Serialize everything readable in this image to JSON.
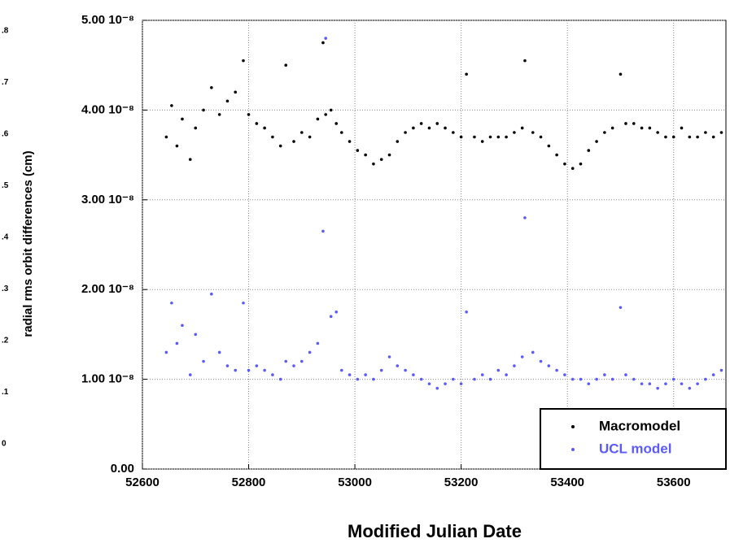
{
  "chart_data": {
    "type": "scatter",
    "y_axis_label": "radial rms orbit differences (cm)",
    "x_axis_label": "Modified Julian Date",
    "left_axis_fragment_labels": [
      ".8",
      ".7",
      ".6",
      ".5",
      ".4",
      ".3",
      ".2",
      ".1",
      "0"
    ],
    "xlim": [
      52600,
      53700
    ],
    "xticks": [
      52600,
      52800,
      53000,
      53200,
      53400,
      53600
    ],
    "ylim": [
      0,
      5e-08
    ],
    "yticks": [
      {
        "value": 0,
        "label": "0.00"
      },
      {
        "value": 1e-08,
        "label": "1.00 10⁻⁸"
      },
      {
        "value": 2e-08,
        "label": "2.00 10⁻⁸"
      },
      {
        "value": 3e-08,
        "label": "3.00 10⁻⁸"
      },
      {
        "value": 4e-08,
        "label": "4.00 10⁻⁸"
      },
      {
        "value": 5e-08,
        "label": "5.00 10⁻⁸"
      }
    ],
    "grid": true,
    "legend": "lower right",
    "series": [
      {
        "name": "Macromodel",
        "color": "#000000",
        "x": [
          52645,
          52655,
          52665,
          52675,
          52690,
          52700,
          52715,
          52730,
          52745,
          52760,
          52775,
          52790,
          52800,
          52815,
          52830,
          52845,
          52860,
          52870,
          52885,
          52900,
          52915,
          52930,
          52940,
          52945,
          52955,
          52965,
          52975,
          52990,
          53005,
          53020,
          53035,
          53050,
          53065,
          53080,
          53095,
          53110,
          53125,
          53140,
          53155,
          53170,
          53185,
          53200,
          53210,
          53225,
          53240,
          53255,
          53270,
          53285,
          53300,
          53315,
          53320,
          53335,
          53350,
          53365,
          53380,
          53395,
          53410,
          53425,
          53440,
          53455,
          53470,
          53485,
          53500,
          53510,
          53525,
          53540,
          53555,
          53570,
          53585,
          53600,
          53615,
          53630,
          53645,
          53660,
          53675,
          53690
        ],
        "values": [
          3.7e-08,
          4.05e-08,
          3.6e-08,
          3.9e-08,
          3.45e-08,
          3.8e-08,
          4e-08,
          4.25e-08,
          3.95e-08,
          4.1e-08,
          4.2e-08,
          4.55e-08,
          3.95e-08,
          3.85e-08,
          3.8e-08,
          3.7e-08,
          3.6e-08,
          4.5e-08,
          3.65e-08,
          3.75e-08,
          3.7e-08,
          3.9e-08,
          4.75e-08,
          3.95e-08,
          4e-08,
          3.85e-08,
          3.75e-08,
          3.65e-08,
          3.55e-08,
          3.5e-08,
          3.4e-08,
          3.45e-08,
          3.5e-08,
          3.65e-08,
          3.75e-08,
          3.8e-08,
          3.85e-08,
          3.8e-08,
          3.85e-08,
          3.8e-08,
          3.75e-08,
          3.7e-08,
          4.4e-08,
          3.7e-08,
          3.65e-08,
          3.7e-08,
          3.7e-08,
          3.7e-08,
          3.75e-08,
          3.8e-08,
          4.55e-08,
          3.75e-08,
          3.7e-08,
          3.6e-08,
          3.5e-08,
          3.4e-08,
          3.35e-08,
          3.4e-08,
          3.55e-08,
          3.65e-08,
          3.75e-08,
          3.8e-08,
          4.4e-08,
          3.85e-08,
          3.85e-08,
          3.8e-08,
          3.8e-08,
          3.75e-08,
          3.7e-08,
          3.7e-08,
          3.8e-08,
          3.7e-08,
          3.7e-08,
          3.75e-08,
          3.7e-08,
          3.75e-08
        ]
      },
      {
        "name": "UCL model",
        "color": "#5a5aff",
        "x": [
          52645,
          52655,
          52665,
          52675,
          52690,
          52700,
          52715,
          52730,
          52745,
          52760,
          52775,
          52790,
          52800,
          52815,
          52830,
          52845,
          52860,
          52870,
          52885,
          52900,
          52915,
          52930,
          52940,
          52945,
          52955,
          52965,
          52975,
          52990,
          53005,
          53020,
          53035,
          53050,
          53065,
          53080,
          53095,
          53110,
          53125,
          53140,
          53155,
          53170,
          53185,
          53200,
          53210,
          53225,
          53240,
          53255,
          53270,
          53285,
          53300,
          53315,
          53320,
          53335,
          53350,
          53365,
          53380,
          53395,
          53410,
          53425,
          53440,
          53455,
          53470,
          53485,
          53500,
          53510,
          53525,
          53540,
          53555,
          53570,
          53585,
          53600,
          53615,
          53630,
          53645,
          53660,
          53675,
          53690
        ],
        "values": [
          1.3e-08,
          1.85e-08,
          1.4e-08,
          1.6e-08,
          1.05e-08,
          1.5e-08,
          1.2e-08,
          1.95e-08,
          1.3e-08,
          1.15e-08,
          1.1e-08,
          1.85e-08,
          1.1e-08,
          1.15e-08,
          1.1e-08,
          1.05e-08,
          1e-08,
          1.2e-08,
          1.15e-08,
          1.2e-08,
          1.3e-08,
          1.4e-08,
          2.65e-08,
          4.8e-08,
          1.7e-08,
          1.75e-08,
          1.1e-08,
          1.05e-08,
          1e-08,
          1.05e-08,
          1e-08,
          1.1e-08,
          1.25e-08,
          1.15e-08,
          1.1e-08,
          1.05e-08,
          1e-08,
          9.5e-09,
          9e-09,
          9.5e-09,
          1e-08,
          9.5e-09,
          1.75e-08,
          1e-08,
          1.05e-08,
          1e-08,
          1.1e-08,
          1.05e-08,
          1.15e-08,
          1.25e-08,
          2.8e-08,
          1.3e-08,
          1.2e-08,
          1.15e-08,
          1.1e-08,
          1.05e-08,
          1e-08,
          1e-08,
          9.5e-09,
          1e-08,
          1.05e-08,
          1e-08,
          1.8e-08,
          1.05e-08,
          1e-08,
          9.5e-09,
          9.5e-09,
          9e-09,
          9.5e-09,
          1e-08,
          9.5e-09,
          9e-09,
          9.5e-09,
          1e-08,
          1.05e-08,
          1.1e-08
        ]
      }
    ]
  }
}
